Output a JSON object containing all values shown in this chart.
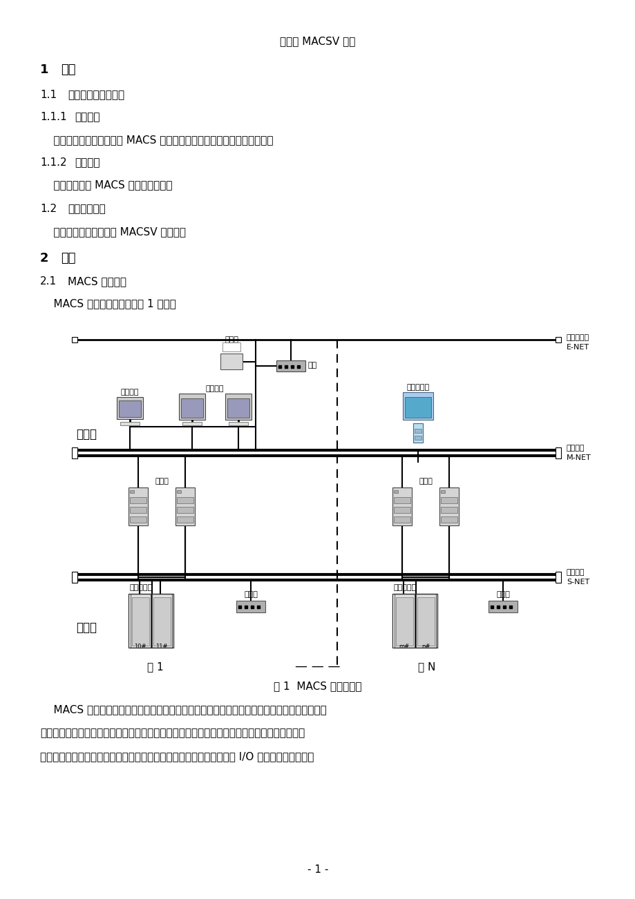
{
  "title": "和利时 MACSV 系统",
  "page_bg": "#ffffff",
  "text_color": "#000000",
  "fig_caption": "图 1  MACS 系统结构图",
  "para1": "    MACS 系统由网络、工程师站、操作员站、高级计算站组成。网络分为监控网络、系统网络和",
  "para2": "控制网络三层，监控网络实现工程师站、操作员站、高级计算站与系统服务器的互连，系统网络",
  "para3": "实现现场控制站与系统服务器的互连，控制网络实现现场控制站与过程 I/O 模块的通讯。一个大",
  "page_num": "- 1 -",
  "s1_num": "1",
  "s1_title": "总则",
  "s11_num": "1.1",
  "s11_title": "主题内容与适用范围",
  "s111_num": "1.1.1",
  "s111_title": "主题内容",
  "s111_body": "    本规程规定了和利时公司 MACS 集散控制系统的日常维护、大修的内容。",
  "s112_num": "1.1.2",
  "s112_title": "适用范围",
  "s112_body": "    本规程适用于 MACS 集散控制系统。",
  "s12_num": "1.2",
  "s12_title": "编写修订依据",
  "s12_body": "    本规程依据北京和利时 MACSV 系统编写",
  "s2_num": "2",
  "s2_title": "概述",
  "s21_num": "2.1",
  "s21_title": "MACS 系统简介",
  "s21_body": "    MACS 系统的体系结构如图 1 所示。",
  "label_enet1": "企业管理网",
  "label_enet2": "E-NET",
  "label_mnet1": "监控网络",
  "label_mnet2": "M-NET",
  "label_snet1": "系统网络",
  "label_snet2": "S-NET",
  "label_printer": "打印机",
  "label_gateway": "网关",
  "label_engr": "工程师站",
  "label_opr": "操作员站",
  "label_adv": "高级计算站",
  "label_opc": "操作级",
  "label_fld": "现场级",
  "label_serv": "服务器",
  "label_fcs": "现场控制站",
  "label_comm": "通信站",
  "label_dom1": "域 1",
  "label_domN": "域 N"
}
